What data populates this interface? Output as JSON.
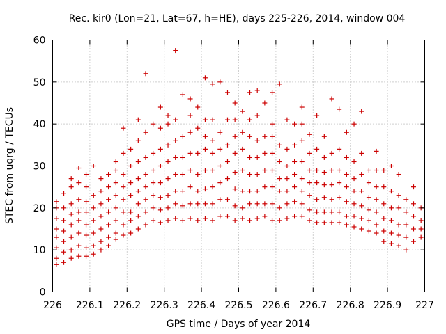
{
  "chart_data": {
    "type": "scatter",
    "title": "Rec. kir0 (Lon=21, Lat=67, h=HE), days 225-226, 2014, window 004",
    "xlabel": "GPS time / Days of year 2014",
    "ylabel": "STEC from uqrg / TECUs",
    "xlim": [
      226,
      227
    ],
    "ylim": [
      0,
      60
    ],
    "x_ticks": [
      "226",
      "226.1",
      "226.2",
      "226.3",
      "226.4",
      "226.5",
      "226.6",
      "226.7",
      "226.8",
      "226.9",
      "227"
    ],
    "y_ticks": [
      "0",
      "10",
      "20",
      "30",
      "40",
      "50",
      "60"
    ],
    "grid": true,
    "marker": "plus",
    "color": "#cc0000",
    "series": [
      {
        "x": [
          226.01,
          226.01,
          226.01,
          226.01,
          226.01,
          226.01,
          226.01,
          226.01,
          226.03,
          226.03,
          226.03,
          226.03,
          226.03,
          226.03,
          226.03,
          226.05,
          226.05,
          226.05,
          226.05,
          226.05,
          226.05,
          226.05,
          226.05,
          226.07,
          226.07,
          226.07,
          226.07,
          226.07,
          226.07,
          226.07,
          226.07,
          226.09,
          226.09,
          226.09,
          226.09,
          226.09,
          226.09,
          226.09,
          226.09,
          226.11,
          226.11,
          226.11,
          226.11,
          226.11,
          226.11,
          226.11,
          226.13,
          226.13,
          226.13,
          226.13,
          226.13,
          226.13,
          226.13,
          226.15,
          226.15,
          226.15,
          226.15,
          226.15,
          226.15,
          226.15,
          226.17,
          226.17,
          226.17,
          226.17,
          226.17,
          226.17,
          226.17,
          226.17,
          226.19,
          226.19,
          226.19,
          226.19,
          226.19,
          226.19,
          226.19,
          226.19,
          226.21,
          226.21,
          226.21,
          226.21,
          226.21,
          226.21,
          226.21,
          226.23,
          226.23,
          226.23,
          226.23,
          226.23,
          226.23,
          226.23,
          226.23,
          226.25,
          226.25,
          226.25,
          226.25,
          226.25,
          226.25,
          226.25,
          226.25,
          226.27,
          226.27,
          226.27,
          226.27,
          226.27,
          226.27,
          226.27,
          226.29,
          226.29,
          226.29,
          226.29,
          226.29,
          226.29,
          226.29,
          226.29,
          226.31,
          226.31,
          226.31,
          226.31,
          226.31,
          226.31,
          226.31,
          226.31,
          226.33,
          226.33,
          226.33,
          226.33,
          226.33,
          226.33,
          226.33,
          226.33,
          226.35,
          226.35,
          226.35,
          226.35,
          226.35,
          226.35,
          226.35,
          226.37,
          226.37,
          226.37,
          226.37,
          226.37,
          226.37,
          226.37,
          226.37,
          226.39,
          226.39,
          226.39,
          226.39,
          226.39,
          226.39,
          226.39,
          226.41,
          226.41,
          226.41,
          226.41,
          226.41,
          226.41,
          226.41,
          226.41,
          226.43,
          226.43,
          226.43,
          226.43,
          226.43,
          226.43,
          226.43,
          226.43,
          226.45,
          226.45,
          226.45,
          226.45,
          226.45,
          226.45,
          226.45,
          226.47,
          226.47,
          226.47,
          226.47,
          226.47,
          226.47,
          226.47,
          226.49,
          226.49,
          226.49,
          226.49,
          226.49,
          226.49,
          226.49,
          226.49,
          226.51,
          226.51,
          226.51,
          226.51,
          226.51,
          226.51,
          226.51,
          226.53,
          226.53,
          226.53,
          226.53,
          226.53,
          226.53,
          226.53,
          226.53,
          226.55,
          226.55,
          226.55,
          226.55,
          226.55,
          226.55,
          226.55,
          226.55,
          226.57,
          226.57,
          226.57,
          226.57,
          226.57,
          226.57,
          226.57,
          226.59,
          226.59,
          226.59,
          226.59,
          226.59,
          226.59,
          226.59,
          226.59,
          226.61,
          226.61,
          226.61,
          226.61,
          226.61,
          226.61,
          226.61,
          226.63,
          226.63,
          226.63,
          226.63,
          226.63,
          226.63,
          226.63,
          226.65,
          226.65,
          226.65,
          226.65,
          226.65,
          226.65,
          226.65,
          226.67,
          226.67,
          226.67,
          226.67,
          226.67,
          226.67,
          226.67,
          226.67,
          226.69,
          226.69,
          226.69,
          226.69,
          226.69,
          226.69,
          226.69,
          226.71,
          226.71,
          226.71,
          226.71,
          226.71,
          226.71,
          226.71,
          226.73,
          226.73,
          226.73,
          226.73,
          226.73,
          226.73,
          226.73,
          226.75,
          226.75,
          226.75,
          226.75,
          226.75,
          226.75,
          226.75,
          226.77,
          226.77,
          226.77,
          226.77,
          226.77,
          226.77,
          226.77,
          226.79,
          226.79,
          226.79,
          226.79,
          226.79,
          226.79,
          226.79,
          226.81,
          226.81,
          226.81,
          226.81,
          226.81,
          226.81,
          226.81,
          226.83,
          226.83,
          226.83,
          226.83,
          226.83,
          226.83,
          226.83,
          226.85,
          226.85,
          226.85,
          226.85,
          226.85,
          226.85,
          226.87,
          226.87,
          226.87,
          226.87,
          226.87,
          226.87,
          226.87,
          226.89,
          226.89,
          226.89,
          226.89,
          226.89,
          226.89,
          226.91,
          226.91,
          226.91,
          226.91,
          226.91,
          226.91,
          226.93,
          226.93,
          226.93,
          226.93,
          226.93,
          226.93,
          226.95,
          226.95,
          226.95,
          226.95,
          226.95,
          226.97,
          226.97,
          226.97,
          226.97,
          226.97,
          226.99,
          226.99,
          226.99,
          226.99
        ],
        "y": [
          6.5,
          8,
          10.5,
          13,
          15,
          17.5,
          20,
          21.5,
          7,
          9.5,
          12,
          14.5,
          17,
          20,
          23.5,
          8,
          10,
          13,
          16,
          18.5,
          21,
          25,
          27,
          8.5,
          11,
          14,
          17,
          19,
          22,
          26,
          29.5,
          8.5,
          10.5,
          13.5,
          16,
          19,
          21.5,
          25,
          28,
          9,
          11,
          14,
          17,
          20,
          23,
          30,
          10,
          12,
          15,
          18,
          21,
          24,
          27,
          11,
          13,
          16,
          19,
          22,
          25,
          28,
          12.5,
          14,
          17,
          20,
          23,
          26,
          29,
          31,
          13.5,
          16,
          19,
          22,
          25,
          28,
          33,
          39,
          14,
          17,
          19,
          23,
          26,
          30,
          34,
          15,
          18,
          21,
          24,
          27,
          31,
          36,
          41,
          16,
          19,
          22,
          25,
          28,
          32,
          38,
          52,
          17,
          20,
          23,
          26,
          29,
          33,
          40,
          16.5,
          19.5,
          22.5,
          26,
          30,
          34,
          39,
          44,
          17,
          20,
          23,
          27,
          31,
          35,
          40,
          42,
          17.5,
          21,
          24,
          28,
          32,
          36,
          41,
          57.5,
          17,
          20.5,
          24,
          28,
          32,
          37,
          47,
          17.5,
          21,
          25,
          29,
          33,
          38,
          42,
          46,
          17,
          21,
          24,
          28,
          33,
          39,
          44,
          17.5,
          21,
          24.5,
          29,
          34,
          37,
          41,
          51,
          17,
          21,
          25,
          29,
          33,
          36,
          41,
          49.5,
          18,
          22,
          26,
          30,
          34,
          38,
          50,
          18,
          22,
          27,
          31,
          35,
          41,
          47.5,
          17,
          20.5,
          24.5,
          28.5,
          33,
          37,
          41,
          45,
          17.5,
          20,
          24,
          29,
          34,
          38,
          43,
          17,
          21,
          24,
          28,
          32,
          37,
          41,
          47.5,
          17.5,
          21,
          24,
          28,
          32,
          36,
          42,
          48,
          18,
          21,
          25,
          29,
          33,
          37,
          45,
          17,
          21,
          25,
          29,
          33,
          37,
          40,
          47.5,
          17,
          20,
          24,
          27,
          31,
          35,
          49.5,
          17.5,
          21,
          24,
          27,
          30,
          34,
          41,
          18,
          21.5,
          25,
          28,
          31,
          35,
          40,
          18,
          21,
          24,
          27,
          31,
          36,
          40,
          44,
          17,
          19.5,
          23,
          26,
          29,
          33,
          37.5,
          16.5,
          19,
          22,
          26,
          29,
          34,
          42,
          16.5,
          19,
          22.5,
          25.5,
          28.5,
          32,
          37,
          16.5,
          19,
          22,
          25.5,
          29,
          33,
          46,
          16.5,
          19,
          22.5,
          26,
          29,
          34,
          43.5,
          16,
          18,
          21.5,
          25,
          28,
          32,
          38,
          15.5,
          18,
          21,
          24,
          27,
          31,
          40,
          15,
          17.5,
          20.5,
          24,
          28,
          33,
          43,
          14.5,
          17,
          19.5,
          22.5,
          26,
          29,
          14,
          16,
          19,
          22,
          25,
          29,
          33.5,
          12,
          14.5,
          17.5,
          21,
          25,
          29,
          11.5,
          14,
          17,
          20,
          24,
          30,
          11,
          13.5,
          16,
          20,
          23,
          28,
          10,
          13,
          16,
          19,
          22,
          12,
          15,
          18,
          21,
          25,
          13,
          15,
          17,
          20
        ]
      }
    ]
  }
}
